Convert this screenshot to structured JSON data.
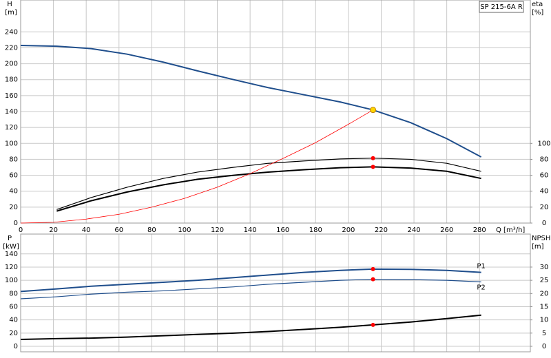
{
  "chart_data": [
    {
      "type": "line",
      "title": "SP 215-6A R",
      "ylabel": "H",
      "yunit": "[m]",
      "y2label": "eta",
      "y2unit": "[%]",
      "xlabel": "Q [m³/h]",
      "xlim": [
        0,
        311
      ],
      "xticks": [
        0,
        20,
        40,
        60,
        80,
        100,
        120,
        140,
        160,
        180,
        200,
        220,
        240,
        260,
        280
      ],
      "ylim": [
        0,
        280
      ],
      "yticks": [
        0,
        20,
        40,
        60,
        80,
        100,
        120,
        140,
        160,
        180,
        200,
        220,
        240
      ],
      "y2lim": [
        0,
        280
      ],
      "y2ticks": [
        0,
        20,
        40,
        60,
        80,
        100
      ],
      "grid": true,
      "series": [
        {
          "color": "#1f4e8c",
          "style": "thick",
          "x": [
            0,
            22,
            43,
            65,
            87,
            108,
            130,
            151,
            173,
            195,
            215,
            238,
            260,
            281
          ],
          "values": [
            223,
            222,
            219,
            212,
            202,
            191,
            180,
            170,
            161,
            152,
            142,
            126,
            106,
            83
          ]
        },
        {
          "color": "#000000",
          "style": "thin",
          "axis": "y2",
          "x": [
            22,
            43,
            65,
            87,
            108,
            130,
            151,
            173,
            195,
            215,
            238,
            260,
            281
          ],
          "values": [
            17,
            32,
            45,
            56,
            64,
            70,
            75,
            78,
            80.5,
            81.5,
            80,
            75,
            65
          ]
        },
        {
          "color": "#000000",
          "style": "thick",
          "axis": "y2",
          "x": [
            22,
            43,
            65,
            87,
            108,
            130,
            151,
            173,
            195,
            215,
            238,
            260,
            281
          ],
          "values": [
            15,
            28,
            39,
            48,
            55,
            60,
            64,
            67,
            69.5,
            70.5,
            69,
            65,
            56
          ]
        },
        {
          "color": "#ff0000",
          "style": "hair",
          "x": [
            0,
            20,
            40,
            60,
            80,
            100,
            120,
            140,
            160,
            180,
            200,
            215
          ],
          "values": [
            0,
            1,
            5,
            11,
            20,
            31,
            45,
            62,
            81,
            101,
            124,
            142
          ]
        }
      ],
      "points": [
        {
          "x": 215,
          "y": 142,
          "color": "#ffd700"
        },
        {
          "x": 215,
          "y": 81.5,
          "color": "#ff0000",
          "axis": "y2"
        },
        {
          "x": 215,
          "y": 70.5,
          "color": "#ff0000",
          "axis": "y2"
        }
      ]
    },
    {
      "type": "line",
      "ylabel": "P",
      "yunit": "[kW]",
      "y2label": "NPSH",
      "y2unit": "[m]",
      "ylim": [
        0,
        170
      ],
      "yticks": [
        0,
        20,
        40,
        60,
        80,
        100,
        120,
        140
      ],
      "y2lim": [
        0,
        42.5
      ],
      "y2ticks": [
        0,
        5,
        10,
        15,
        20,
        25,
        30
      ],
      "grid": true,
      "series": [
        {
          "name": "P1",
          "color": "#1f4e8c",
          "style": "thick",
          "x": [
            0,
            22,
            43,
            65,
            87,
            108,
            130,
            151,
            173,
            195,
            215,
            238,
            260,
            281
          ],
          "values": [
            83,
            87,
            91,
            94,
            97,
            100,
            104,
            108,
            112,
            115,
            117,
            116.5,
            115,
            112
          ]
        },
        {
          "name": "P2",
          "color": "#1f4e8c",
          "style": "thin",
          "x": [
            0,
            22,
            43,
            65,
            87,
            108,
            130,
            151,
            173,
            195,
            215,
            238,
            260,
            281
          ],
          "values": [
            72,
            75,
            79,
            82,
            84,
            87,
            90,
            94,
            97,
            100,
            101.5,
            101,
            100,
            97.5
          ]
        },
        {
          "color": "#000000",
          "style": "thick",
          "axis": "y2",
          "x": [
            0,
            22,
            43,
            65,
            87,
            108,
            130,
            151,
            173,
            195,
            215,
            238,
            260,
            281
          ],
          "values": [
            2.6,
            2.9,
            3.1,
            3.5,
            4,
            4.5,
            5,
            5.6,
            6.4,
            7.2,
            8.1,
            9.2,
            10.5,
            11.8
          ]
        }
      ],
      "points": [
        {
          "x": 215,
          "y": 117,
          "color": "#ff0000"
        },
        {
          "x": 215,
          "y": 101.5,
          "color": "#ff0000"
        },
        {
          "x": 215,
          "y": 8.1,
          "color": "#ff0000",
          "axis": "y2"
        }
      ]
    }
  ]
}
